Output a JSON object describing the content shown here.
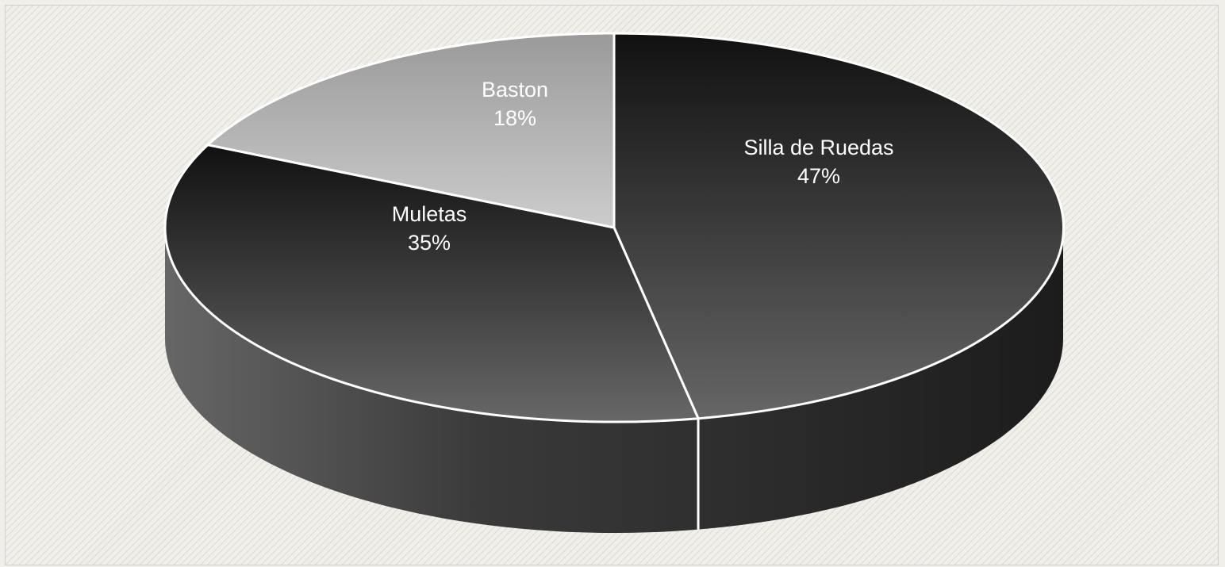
{
  "chart_data": {
    "type": "pie",
    "style": "3d",
    "title": "",
    "legend": "none",
    "categories": [
      "Silla de Ruedas",
      "Muletas",
      "Baston"
    ],
    "values": [
      47,
      35,
      18
    ],
    "labels": {
      "silla": {
        "name": "Silla de Ruedas",
        "pct": "47%"
      },
      "muletas": {
        "name": "Muletas",
        "pct": "35%"
      },
      "baston": {
        "name": "Baston",
        "pct": "18%"
      }
    },
    "colors": {
      "background": "#f1efea",
      "hatch": "#dcdad5",
      "silla_top": "#5a5a5a",
      "muletas_top": "#555555",
      "baston_top": "#a6a6a6",
      "side": "#3a3a3a",
      "separator": "#ffffff"
    }
  }
}
